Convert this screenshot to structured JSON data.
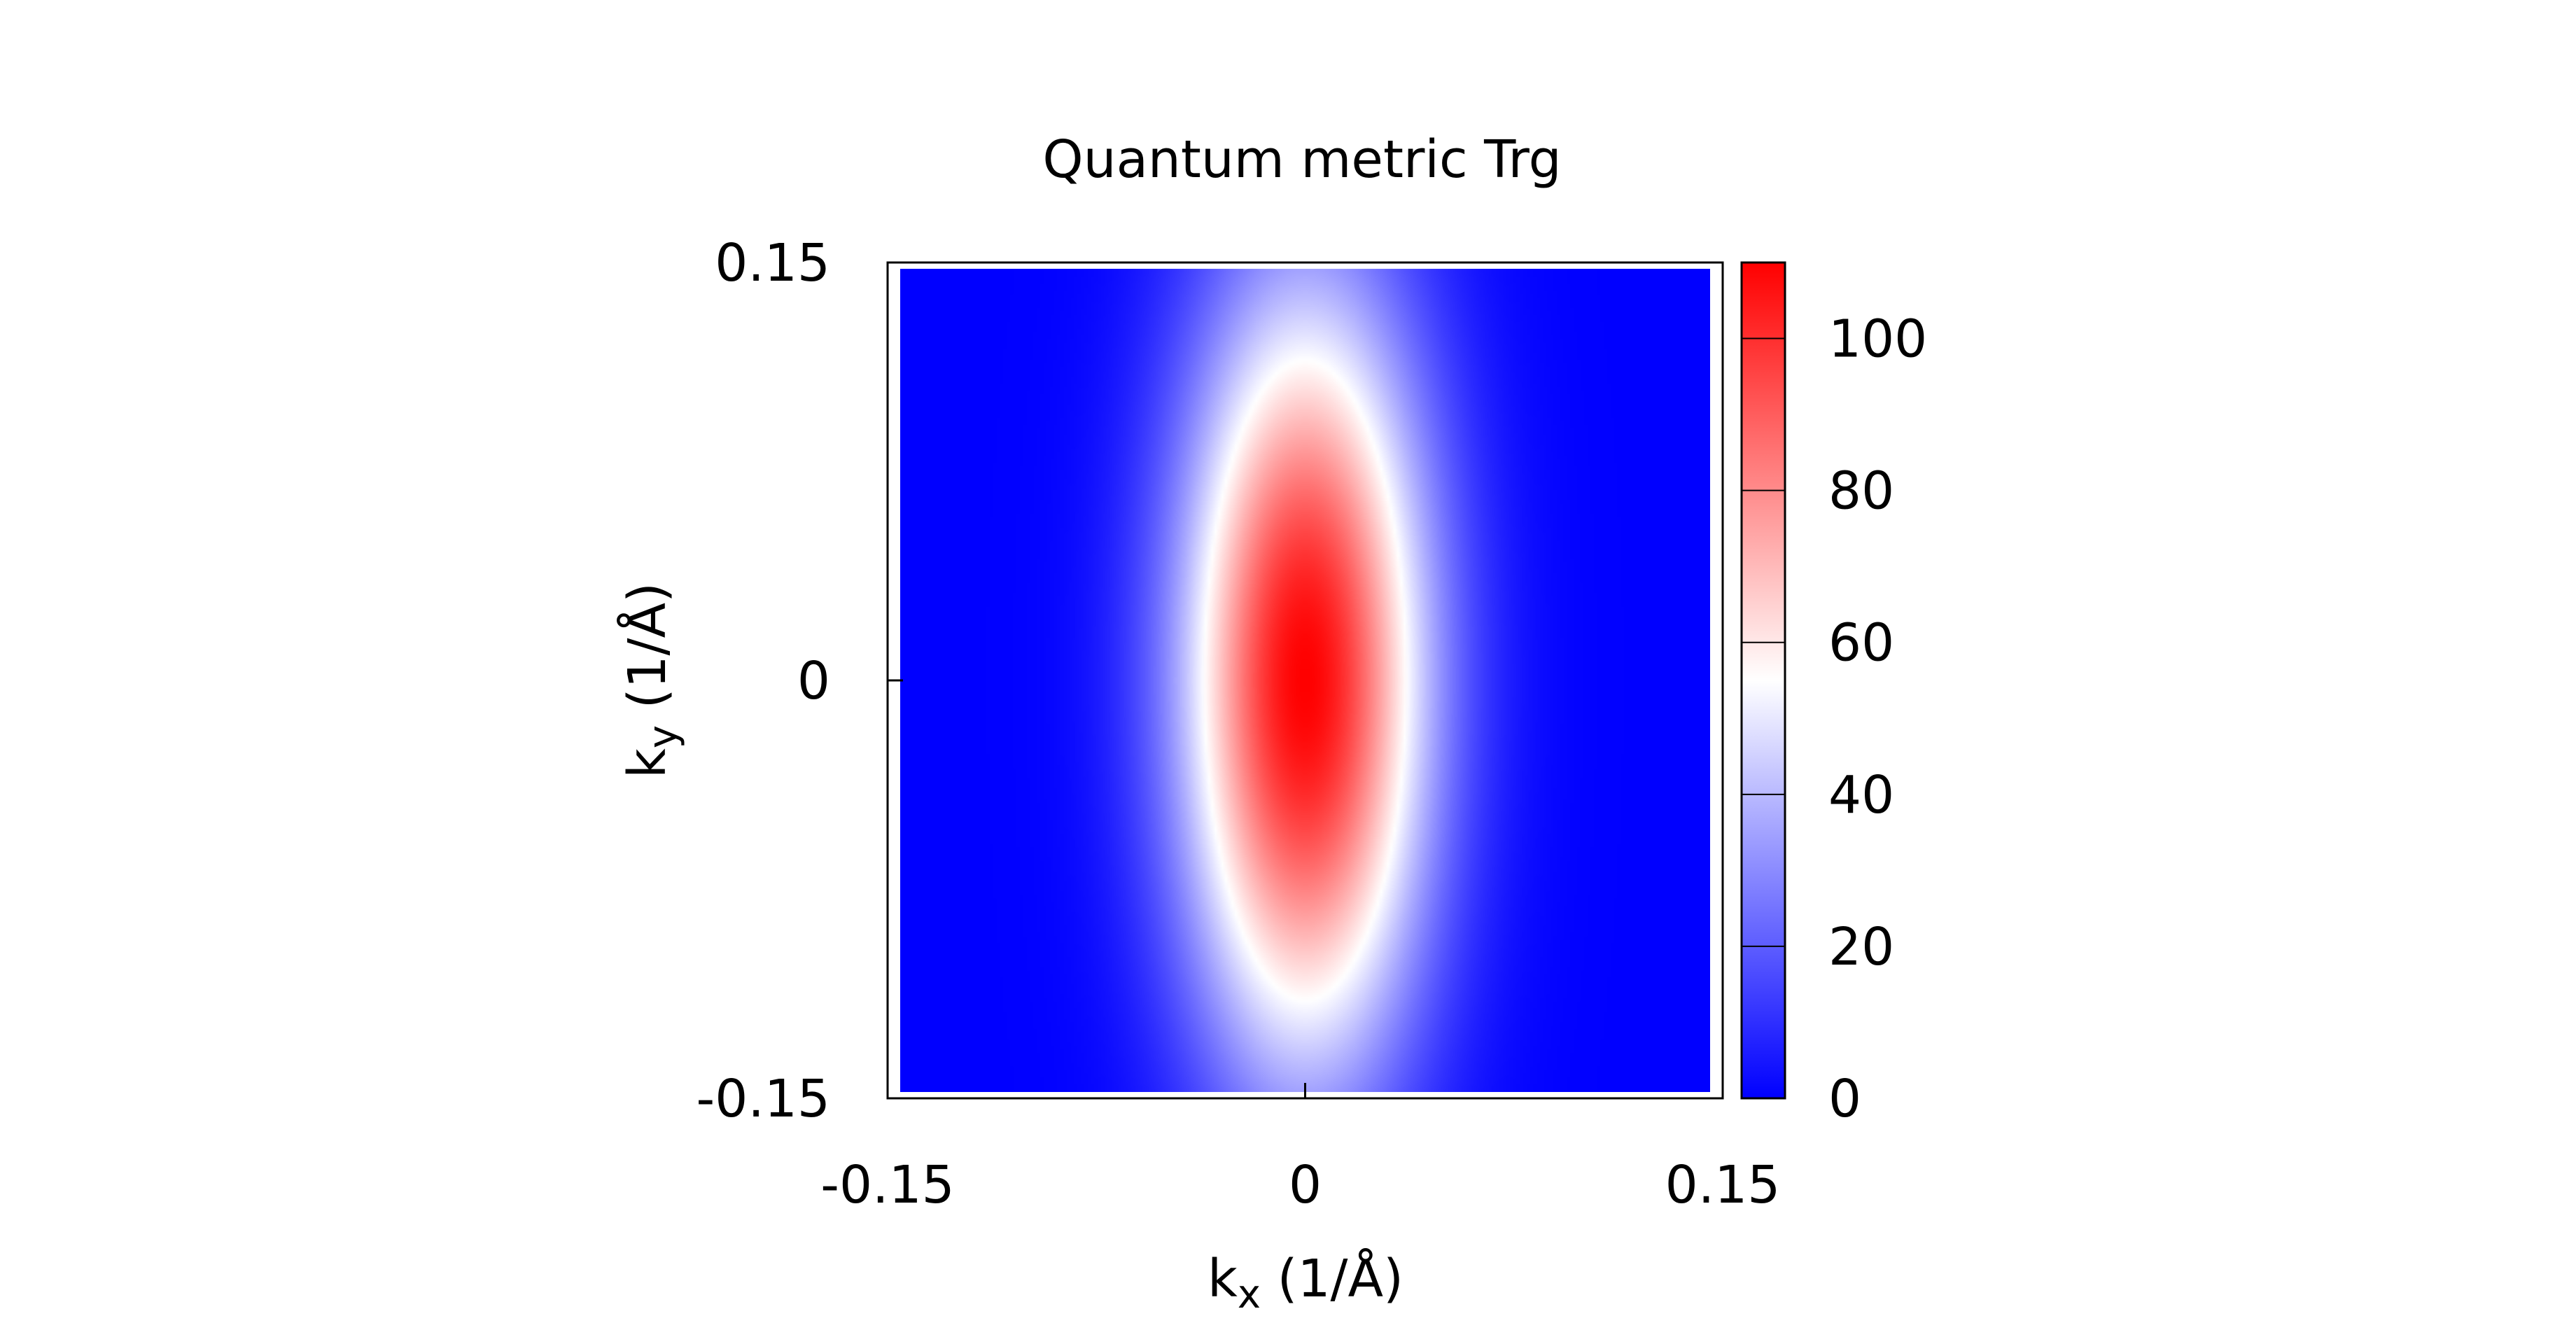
{
  "chart_data": {
    "type": "heatmap",
    "title": "Quantum metric Trg",
    "xlabel": {
      "base": "k",
      "sub": "x",
      "rest": " (1/Å)"
    },
    "ylabel": {
      "base": "k",
      "sub": "y",
      "rest": " (1/Å)"
    },
    "xlim": [
      -0.15,
      0.15
    ],
    "ylim": [
      -0.15,
      0.15
    ],
    "x_ticks": [
      {
        "value": -0.15,
        "label": "-0.15"
      },
      {
        "value": 0,
        "label": "0"
      },
      {
        "value": 0.15,
        "label": "0.15"
      }
    ],
    "y_ticks": [
      {
        "value": 0.15,
        "label": "0.15"
      },
      {
        "value": 0,
        "label": "0"
      },
      {
        "value": -0.15,
        "label": "-0.15"
      }
    ],
    "colorbar": {
      "range": [
        0,
        110
      ],
      "ticks": [
        {
          "value": 0,
          "label": "0"
        },
        {
          "value": 20,
          "label": "20"
        },
        {
          "value": 40,
          "label": "40"
        },
        {
          "value": 60,
          "label": "60"
        },
        {
          "value": 80,
          "label": "80"
        },
        {
          "value": 100,
          "label": "100"
        }
      ],
      "colormap": [
        {
          "value": 0,
          "color": "#0000ff"
        },
        {
          "value": 55,
          "color": "#ffffff"
        },
        {
          "value": 110,
          "color": "#ff0000"
        }
      ]
    },
    "field": {
      "description_free": true,
      "peak_value": 110,
      "peak_at": [
        0,
        0
      ],
      "x_width": 0.045,
      "y_width": 0.14,
      "background_value": 0
    },
    "grid": false,
    "legend": "none"
  }
}
